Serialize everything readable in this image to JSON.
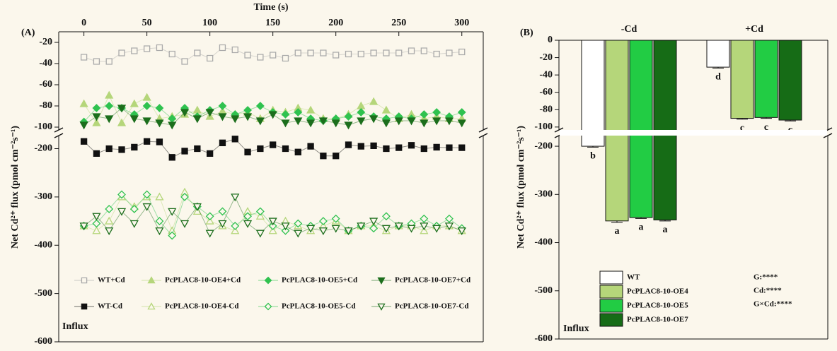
{
  "chart_data": [
    {
      "type": "line",
      "panel_label": "(A)",
      "xlabel": "Time (s)",
      "ylabel": "Net Cd²⁺ flux (pmol cm⁻²s⁻¹)",
      "annotation": "Influx",
      "x": [
        0,
        10,
        20,
        30,
        40,
        50,
        60,
        70,
        80,
        90,
        100,
        110,
        120,
        130,
        140,
        150,
        160,
        170,
        180,
        190,
        200,
        210,
        220,
        230,
        240,
        250,
        260,
        270,
        280,
        290,
        300
      ],
      "xlim": [
        -20,
        317
      ],
      "xticks": [
        0,
        50,
        100,
        150,
        200,
        250,
        300
      ],
      "ylim": [
        -600,
        -10
      ],
      "ybreak": [
        -170,
        -104
      ],
      "yticks": [
        -20,
        -40,
        -60,
        -80,
        -100,
        -200,
        -300,
        -400,
        -500,
        -600
      ],
      "legend": "bottom",
      "series": [
        {
          "name": "WT+Cd",
          "color": "#aaaaaa",
          "marker": "square",
          "filled": false,
          "values": [
            -34,
            -38,
            -38,
            -30,
            -28,
            -26,
            -25,
            -31,
            -38,
            -30,
            -35,
            -25,
            -27,
            -32,
            -34,
            -32,
            -35,
            -30,
            -30,
            -30,
            -32,
            -31,
            -31,
            -30,
            -30,
            -30,
            -28,
            -28,
            -31,
            -30,
            -29
          ]
        },
        {
          "name": "PcPLAC8-10-OE4+Cd",
          "color": "#b5d67a",
          "marker": "triangle-up",
          "filled": true,
          "values": [
            -78,
            -96,
            -70,
            -96,
            -78,
            -72,
            -92,
            -90,
            -88,
            -84,
            -90,
            -85,
            -88,
            -86,
            -92,
            -84,
            -86,
            -82,
            -84,
            -92,
            -92,
            -88,
            -80,
            -76,
            -84,
            -92,
            -88,
            -92,
            -90,
            -92,
            -92
          ]
        },
        {
          "name": "PcPLAC8-10-OE5+Cd",
          "color": "#2fc24f",
          "marker": "diamond",
          "filled": true,
          "values": [
            -95,
            -82,
            -80,
            -82,
            -88,
            -80,
            -82,
            -92,
            -82,
            -90,
            -84,
            -80,
            -88,
            -84,
            -80,
            -86,
            -88,
            -86,
            -92,
            -94,
            -92,
            -90,
            -86,
            -90,
            -92,
            -90,
            -92,
            -88,
            -86,
            -90,
            -86
          ]
        },
        {
          "name": "PcPLAC8-10-OE7+Cd",
          "color": "#1c6e1c",
          "marker": "triangle-down",
          "filled": true,
          "values": [
            -98,
            -90,
            -92,
            -82,
            -92,
            -94,
            -96,
            -98,
            -86,
            -92,
            -86,
            -90,
            -92,
            -90,
            -94,
            -88,
            -96,
            -94,
            -96,
            -94,
            -96,
            -98,
            -94,
            -92,
            -96,
            -94,
            -94,
            -96,
            -94,
            -94,
            -96
          ]
        },
        {
          "name": "WT-Cd",
          "color": "#111111",
          "marker": "square",
          "filled": true,
          "values": [
            -185,
            -210,
            -200,
            -202,
            -197,
            -185,
            -186,
            -218,
            -205,
            -200,
            -210,
            -188,
            -180,
            -207,
            -200,
            -192,
            -200,
            -207,
            -195,
            -215,
            -215,
            -192,
            -195,
            -194,
            -200,
            -198,
            -193,
            -200,
            -197,
            -198,
            -198
          ]
        },
        {
          "name": "PcPLAC8-10-OE4-Cd",
          "color": "#b5d67a",
          "marker": "triangle-up",
          "filled": false,
          "values": [
            -360,
            -370,
            -350,
            -300,
            -320,
            -300,
            -300,
            -370,
            -290,
            -330,
            -350,
            -360,
            -370,
            -330,
            -340,
            -370,
            -350,
            -360,
            -370,
            -360,
            -350,
            -370,
            -360,
            -360,
            -370,
            -360,
            -360,
            -370,
            -360,
            -360,
            -370
          ]
        },
        {
          "name": "PcPLAC8-10-OE5-Cd",
          "color": "#2fc24f",
          "marker": "diamond",
          "filled": false,
          "values": [
            -360,
            -355,
            -325,
            -295,
            -325,
            -295,
            -350,
            -380,
            -300,
            -320,
            -340,
            -330,
            -360,
            -340,
            -330,
            -360,
            -370,
            -355,
            -360,
            -350,
            -345,
            -370,
            -360,
            -365,
            -340,
            -360,
            -355,
            -345,
            -360,
            -345,
            -365
          ]
        },
        {
          "name": "PcPLAC8-10-OE7-Cd",
          "color": "#1c6e1c",
          "marker": "triangle-down",
          "filled": false,
          "values": [
            -360,
            -340,
            -370,
            -330,
            -355,
            -320,
            -370,
            -330,
            -355,
            -320,
            -375,
            -355,
            -300,
            -355,
            -375,
            -350,
            -360,
            -375,
            -365,
            -370,
            -365,
            -370,
            -360,
            -350,
            -365,
            -360,
            -365,
            -360,
            -365,
            -360,
            -370
          ]
        }
      ]
    },
    {
      "type": "bar",
      "panel_label": "(B)",
      "ylabel": "Net Cd²⁺ flux (pmol cm⁻²s⁻¹)",
      "annotation": "Influx",
      "categories": [
        "-Cd",
        "+Cd"
      ],
      "ylim": [
        -600,
        0
      ],
      "ybreak": [
        -175,
        -105
      ],
      "yticks": [
        0,
        -20,
        -40,
        -60,
        -80,
        -100,
        -200,
        -300,
        -400,
        -500,
        -600
      ],
      "stats": [
        "G:****",
        "Cd:****",
        "G×Cd:****"
      ],
      "series": [
        {
          "name": "WT",
          "color": "#ffffff",
          "values": [
            -200,
            -31
          ],
          "errors": [
            2,
            1
          ],
          "letters": [
            "b",
            "d"
          ]
        },
        {
          "name": "PcPLAC8-10-OE4",
          "color": "#b5d67a",
          "values": [
            -355,
            -90
          ],
          "errors": [
            3,
            1
          ],
          "letters": [
            "a",
            "c"
          ]
        },
        {
          "name": "PcPLAC8-10-OE5",
          "color": "#22cc44",
          "values": [
            -348,
            -89
          ],
          "errors": [
            2,
            1
          ],
          "letters": [
            "a",
            "c"
          ]
        },
        {
          "name": "PcPLAC8-10-OE7",
          "color": "#166c16",
          "values": [
            -353,
            -92
          ],
          "errors": [
            2,
            1
          ],
          "letters": [
            "a",
            "c"
          ]
        }
      ]
    }
  ]
}
